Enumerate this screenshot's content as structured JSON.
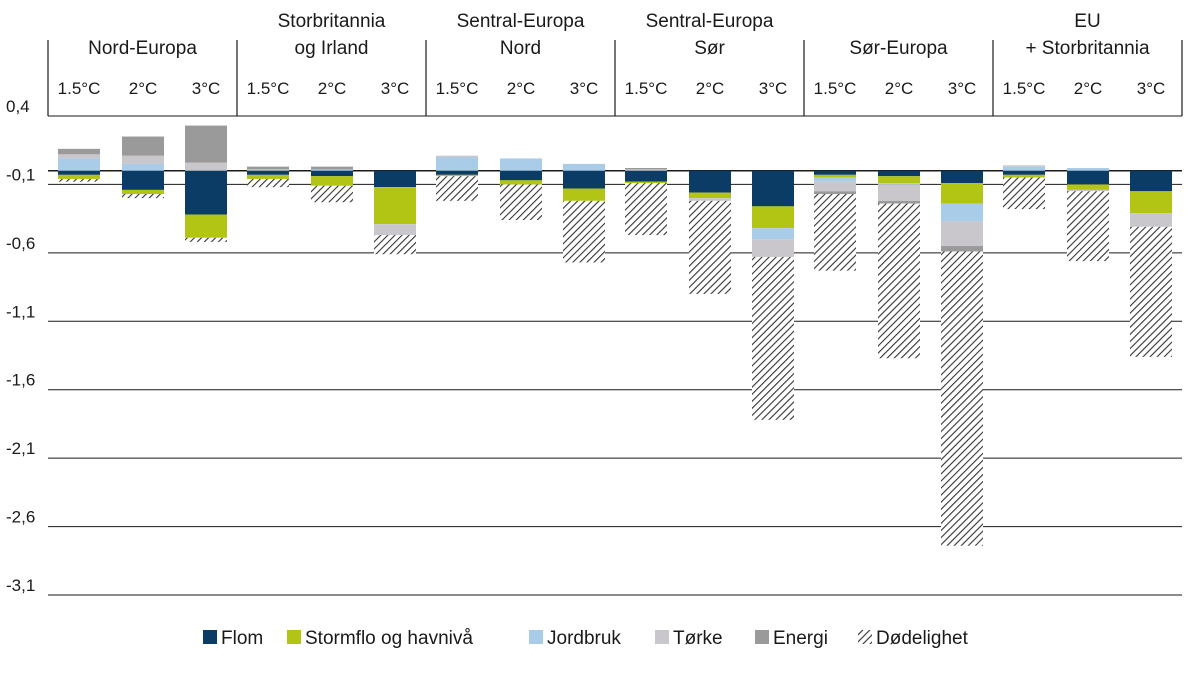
{
  "chart_data": {
    "type": "bar",
    "stacked": true,
    "title": "",
    "xlabel": "",
    "ylabel": "",
    "ylim": [
      -3.1,
      0.4
    ],
    "yticks": [
      "0,4",
      "-0,1",
      "-0,6",
      "-1,1",
      "-1,6",
      "-2,1",
      "-2,6",
      "-3,1"
    ],
    "ytick_values": [
      0.4,
      -0.1,
      -0.6,
      -1.1,
      -1.6,
      -2.1,
      -2.6,
      -3.1
    ],
    "grid": true,
    "legend_position": "bottom",
    "colors": {
      "Flom": "#0b3c66",
      "Stormflo og havnivå": "#b2c514",
      "Jordbruk": "#a9cce8",
      "Tørke": "#c9c7cb",
      "Energi": "#9a9a9a",
      "Dødelighet": "hatch"
    },
    "legend": [
      {
        "name": "Flom",
        "color": "#0b3c66"
      },
      {
        "name": "Stormflo og havnivå",
        "color": "#b2c514"
      },
      {
        "name": "Jordbruk",
        "color": "#a9cce8"
      },
      {
        "name": "Tørke",
        "color": "#c9c7cb"
      },
      {
        "name": "Energi",
        "color": "#9a9a9a"
      },
      {
        "name": "Dødelighet",
        "color": "hatch"
      }
    ],
    "groups": [
      {
        "label": "Nord-Europa",
        "categories": [
          {
            "label": "1.5°C",
            "segments": {
              "Jordbruk": 0.09,
              "Tørke": 0.03,
              "Energi": 0.04,
              "Flom": -0.03,
              "Stormflo og havnivå": -0.03,
              "Dødelighet": -0.02
            }
          },
          {
            "label": "2°C",
            "segments": {
              "Jordbruk": 0.05,
              "Tørke": 0.06,
              "Energi": 0.14,
              "Flom": -0.14,
              "Stormflo og havnivå": -0.03,
              "Dødelighet": -0.03
            }
          },
          {
            "label": "3°C",
            "segments": {
              "Tørke": 0.06,
              "Energi": 0.27,
              "Flom": -0.32,
              "Stormflo og havnivå": -0.17,
              "Dødelighet": -0.03
            }
          }
        ]
      },
      {
        "label": "Storbritannia og Irland",
        "categories": [
          {
            "label": "1.5°C",
            "segments": {
              "Tørke": 0.01,
              "Energi": 0.02,
              "Flom": -0.03,
              "Stormflo og havnivå": -0.03,
              "Dødelighet": -0.06
            }
          },
          {
            "label": "2°C",
            "segments": {
              "Jordbruk": 0.01,
              "Energi": 0.02,
              "Flom": -0.04,
              "Stormflo og havnivå": -0.07,
              "Dødelighet": -0.12
            }
          },
          {
            "label": "3°C",
            "segments": {
              "Flom": -0.12,
              "Stormflo og havnivå": -0.27,
              "Tørke": -0.08,
              "Dødelighet": -0.14
            }
          }
        ]
      },
      {
        "label": "Sentral-Europa Nord",
        "categories": [
          {
            "label": "1.5°C",
            "segments": {
              "Jordbruk": 0.1,
              "Tørke": 0.01,
              "Flom": -0.03,
              "Stormflo og havnivå": -0.01,
              "Dødelighet": -0.18
            }
          },
          {
            "label": "2°C",
            "segments": {
              "Jordbruk": 0.09,
              "Flom": -0.07,
              "Stormflo og havnivå": -0.03,
              "Dødelighet": -0.26
            }
          },
          {
            "label": "3°C",
            "segments": {
              "Jordbruk": 0.05,
              "Flom": -0.13,
              "Stormflo og havnivå": -0.09,
              "Dødelighet": -0.45
            }
          }
        ]
      },
      {
        "label": "Sentral-Europa Sør",
        "categories": [
          {
            "label": "1.5°C",
            "segments": {
              "Tørke": 0.01,
              "Energi": 0.01,
              "Flom": -0.08,
              "Stormflo og havnivå": -0.01,
              "Dødelighet": -0.38
            }
          },
          {
            "label": "2°C",
            "segments": {
              "Flom": -0.16,
              "Stormflo og havnivå": -0.04,
              "Tørke": -0.02,
              "Dødelighet": -0.68
            }
          },
          {
            "label": "3°C",
            "segments": {
              "Flom": -0.26,
              "Stormflo og havnivå": -0.16,
              "Jordbruk": -0.08,
              "Tørke": -0.13,
              "Dødelighet": -1.19
            }
          }
        ]
      },
      {
        "label": "Sør-Europa",
        "categories": [
          {
            "label": "1.5°C",
            "segments": {
              "Flom": -0.03,
              "Stormflo og havnivå": -0.02,
              "Jordbruk": -0.03,
              "Tørke": -0.07,
              "Energi": -0.02,
              "Dødelighet": -0.56
            }
          },
          {
            "label": "2°C",
            "segments": {
              "Flom": -0.04,
              "Stormflo og havnivå": -0.05,
              "Jordbruk": -0.01,
              "Tørke": -0.12,
              "Energi": -0.02,
              "Dødelighet": -1.13
            }
          },
          {
            "label": "3°C",
            "segments": {
              "Flom": -0.09,
              "Stormflo og havnivå": -0.15,
              "Jordbruk": -0.13,
              "Tørke": -0.18,
              "Energi": -0.04,
              "Dødelighet": -2.15
            }
          }
        ]
      },
      {
        "label": "EU + Storbritannia",
        "categories": [
          {
            "label": "1.5°C",
            "segments": {
              "Jordbruk": 0.03,
              "Tørke": 0.01,
              "Flom": -0.03,
              "Stormflo og havnivå": -0.02,
              "Dødelighet": -0.23
            }
          },
          {
            "label": "2°C",
            "segments": {
              "Jordbruk": 0.02,
              "Flom": -0.1,
              "Stormflo og havnivå": -0.04,
              "Tørke": -0.01,
              "Dødelighet": -0.51
            }
          },
          {
            "label": "3°C",
            "segments": {
              "Flom": -0.15,
              "Stormflo og havnivå": -0.16,
              "Tørke": -0.1,
              "Dødelighet": -0.95
            }
          }
        ]
      }
    ]
  }
}
